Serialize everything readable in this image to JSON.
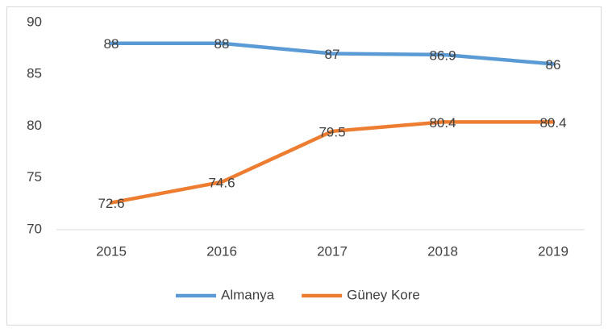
{
  "chart_data": {
    "type": "line",
    "categories": [
      "2015",
      "2016",
      "2017",
      "2018",
      "2019"
    ],
    "series": [
      {
        "name": "Almanya",
        "color": "#5b9bd5",
        "values": [
          88,
          88,
          87,
          86.9,
          86
        ]
      },
      {
        "name": "Güney Kore",
        "color": "#ed7d31",
        "values": [
          72.6,
          74.6,
          79.5,
          80.4,
          80.4
        ]
      }
    ],
    "ylim": [
      70,
      90
    ],
    "yticks": [
      70,
      75,
      80,
      85,
      90
    ],
    "grid": false,
    "legend": "bottom"
  }
}
